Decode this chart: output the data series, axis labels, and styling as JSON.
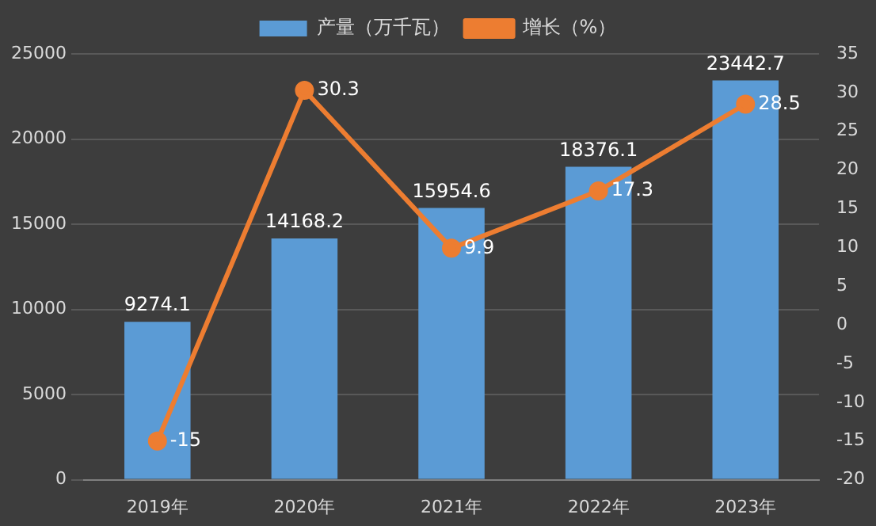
{
  "chart_data": {
    "type": "bar",
    "categories": [
      "2019年",
      "2020年",
      "2021年",
      "2022年",
      "2023年"
    ],
    "series": [
      {
        "name": "产量（万千瓦）",
        "color": "#5b9bd5",
        "values": [
          9274.1,
          14168.2,
          15954.6,
          18376.1,
          23442.7
        ]
      },
      {
        "name": "增长（%）",
        "type": "line",
        "axis": "y2",
        "color": "#ed7d31",
        "values": [
          -15,
          30.3,
          9.9,
          17.3,
          28.5
        ]
      }
    ],
    "ylim": [
      0,
      25000
    ],
    "yticks": [
      0,
      5000,
      10000,
      15000,
      20000,
      25000
    ],
    "y2lim": [
      -20,
      35
    ],
    "y2ticks": [
      -20,
      -15,
      -10,
      -5,
      0,
      5,
      10,
      15,
      20,
      25,
      30,
      35
    ],
    "grid": "y",
    "legend": "top",
    "marker": "circle",
    "line_style": "solid",
    "data_labels": true
  }
}
